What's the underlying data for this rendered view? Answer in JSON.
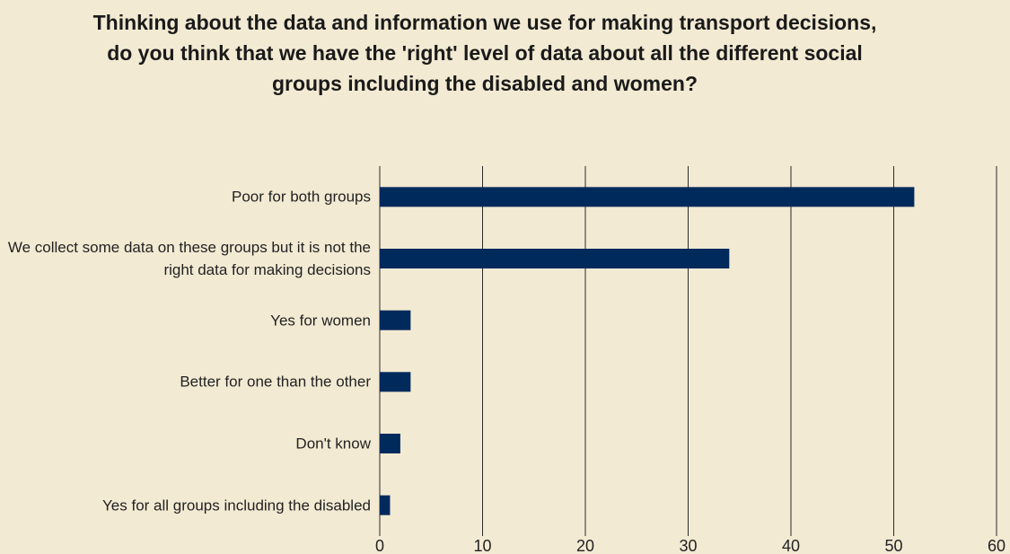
{
  "chart_data": {
    "type": "hbar",
    "title": "Thinking about the data and information we use for making transport decisions, do you think that we have the 'right' level of data about all the different social groups including the disabled and women?",
    "categories": [
      "Poor for both groups",
      "We collect some data on these groups but it is not the right data for making decisions",
      "Yes for women",
      "Better for one than the other",
      "Don't know",
      "Yes for all groups including the disabled"
    ],
    "values": [
      52,
      34,
      3,
      3,
      2,
      1
    ],
    "color": "#002a5c",
    "xlim": [
      0,
      60
    ],
    "xticks": [
      0,
      10,
      20,
      30,
      40,
      50,
      60
    ],
    "grid": true
  }
}
